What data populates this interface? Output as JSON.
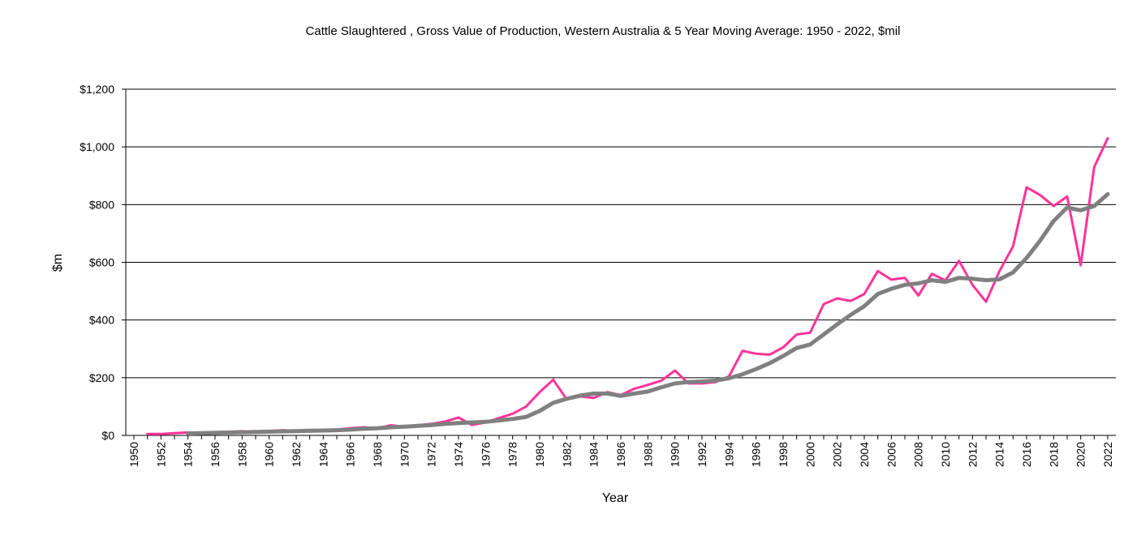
{
  "chart_data": {
    "type": "line",
    "title": "Cattle Slaughtered , Gross Value of Production,  Western  Australia & 5 Year Moving Average: 1950 - 2022, $mil",
    "xlabel": "Year",
    "ylabel": "$m",
    "xlim": [
      1950,
      2022
    ],
    "ylim": [
      0,
      1200
    ],
    "y_ticks": [
      0,
      200,
      400,
      600,
      800,
      1000,
      1200
    ],
    "y_tick_labels": [
      "$0",
      "$200",
      "$400",
      "$600",
      "$800",
      "$1,000",
      "$1,200"
    ],
    "x_tick_labels": [
      "1950",
      "1952",
      "1954",
      "1956",
      "1958",
      "1960",
      "1962",
      "1964",
      "1966",
      "1968",
      "1970",
      "1972",
      "1974",
      "1976",
      "1978",
      "1980",
      "1982",
      "1984",
      "1986",
      "1988",
      "1990",
      "1992",
      "1994",
      "1996",
      "1998",
      "2000",
      "2002",
      "2004",
      "2006",
      "2008",
      "2010",
      "2012",
      "2014",
      "2016",
      "2018",
      "2020",
      "2022"
    ],
    "grid": true,
    "series": [
      {
        "name": "Gross Value of Production",
        "color": "#ff3399",
        "x": [
          1951,
          1952,
          1953,
          1954,
          1955,
          1956,
          1957,
          1958,
          1959,
          1960,
          1961,
          1962,
          1963,
          1964,
          1965,
          1966,
          1967,
          1968,
          1969,
          1970,
          1971,
          1972,
          1973,
          1974,
          1975,
          1976,
          1977,
          1978,
          1979,
          1980,
          1981,
          1982,
          1983,
          1984,
          1985,
          1986,
          1987,
          1988,
          1989,
          1990,
          1991,
          1992,
          1993,
          1994,
          1995,
          1996,
          1997,
          1998,
          1999,
          2000,
          2001,
          2002,
          2003,
          2004,
          2005,
          2006,
          2007,
          2008,
          2009,
          2010,
          2011,
          2012,
          2013,
          2014,
          2015,
          2016,
          2017,
          2018,
          2019,
          2020,
          2021,
          2022
        ],
        "values": [
          5,
          5,
          8,
          10,
          9,
          10,
          12,
          15,
          12,
          15,
          18,
          15,
          17,
          17,
          20,
          25,
          28,
          25,
          35,
          30,
          35,
          40,
          48,
          62,
          36,
          45,
          60,
          75,
          100,
          150,
          193,
          125,
          135,
          130,
          150,
          140,
          162,
          175,
          190,
          225,
          180,
          180,
          185,
          205,
          293,
          283,
          280,
          305,
          350,
          356,
          455,
          475,
          466,
          490,
          570,
          540,
          546,
          485,
          560,
          537,
          605,
          522,
          463,
          570,
          655,
          860,
          833,
          795,
          828,
          590,
          930,
          1030
        ]
      },
      {
        "name": "5 Year Moving Average",
        "color": "#808080",
        "x": [
          1954,
          1955,
          1956,
          1957,
          1958,
          1959,
          1960,
          1961,
          1962,
          1963,
          1964,
          1965,
          1966,
          1967,
          1968,
          1969,
          1970,
          1971,
          1972,
          1973,
          1974,
          1975,
          1976,
          1977,
          1978,
          1979,
          1980,
          1981,
          1982,
          1983,
          1984,
          1985,
          1986,
          1987,
          1988,
          1989,
          1990,
          1991,
          1992,
          1993,
          1994,
          1995,
          1996,
          1997,
          1998,
          1999,
          2000,
          2001,
          2002,
          2003,
          2004,
          2005,
          2006,
          2007,
          2008,
          2009,
          2010,
          2011,
          2012,
          2013,
          2014,
          2015,
          2016,
          2017,
          2018,
          2019,
          2020,
          2021,
          2022
        ],
        "values": [
          7,
          8,
          9,
          10,
          11,
          12,
          13,
          14,
          15,
          16,
          17,
          18,
          20,
          23,
          25,
          28,
          30,
          33,
          36,
          40,
          43,
          45,
          47,
          52,
          57,
          64,
          85,
          113,
          127,
          138,
          145,
          145,
          137,
          145,
          152,
          167,
          180,
          185,
          187,
          190,
          198,
          212,
          230,
          250,
          275,
          303,
          315,
          350,
          385,
          418,
          448,
          490,
          508,
          522,
          527,
          538,
          532,
          546,
          543,
          538,
          541,
          565,
          615,
          675,
          743,
          790,
          780,
          795,
          836
        ]
      }
    ]
  }
}
